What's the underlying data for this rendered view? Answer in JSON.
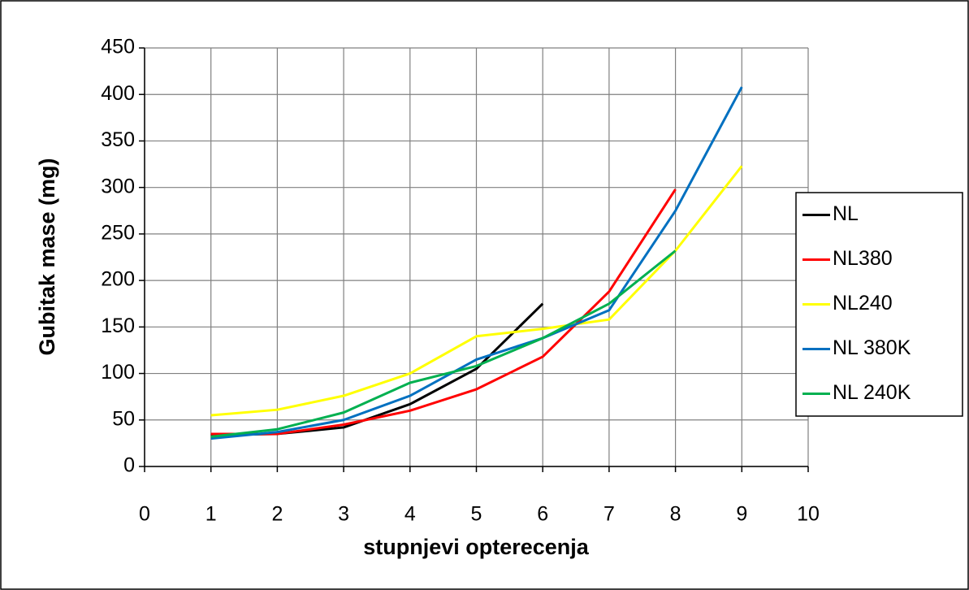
{
  "chart_data": {
    "type": "line",
    "x_label": "stupnjevi opterecenja",
    "y_label": "Gubitak mase (mg)",
    "x": [
      1,
      2,
      3,
      4,
      5,
      6,
      7,
      8,
      9
    ],
    "series": [
      {
        "name": "NL",
        "color": "#000000",
        "values": [
          34,
          35,
          42,
          67,
          105,
          175,
          null,
          null,
          null
        ]
      },
      {
        "name": "NL380",
        "color": "#ff0000",
        "values": [
          35,
          35,
          45,
          60,
          83,
          118,
          188,
          298,
          null
        ]
      },
      {
        "name": "NL240",
        "color": "#ffff00",
        "values": [
          55,
          61,
          76,
          100,
          140,
          148,
          158,
          232,
          323
        ]
      },
      {
        "name": "NL 380K",
        "color": "#0070c0",
        "values": [
          30,
          37,
          50,
          76,
          115,
          138,
          168,
          275,
          408
        ]
      },
      {
        "name": "NL 240K",
        "color": "#00b050",
        "values": [
          32,
          40,
          58,
          90,
          108,
          138,
          175,
          232,
          null
        ]
      }
    ],
    "xlim": [
      0,
      10
    ],
    "xticks": [
      0,
      1,
      2,
      3,
      4,
      5,
      6,
      7,
      8,
      9,
      10
    ],
    "ylim": [
      0,
      450
    ],
    "yticks": [
      0,
      50,
      100,
      150,
      200,
      250,
      300,
      350,
      400,
      450
    ],
    "grid": true,
    "legend": "right"
  }
}
